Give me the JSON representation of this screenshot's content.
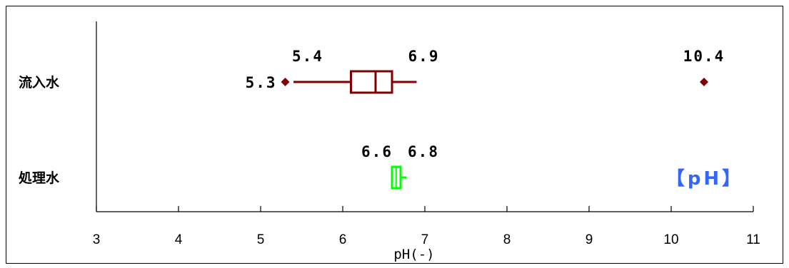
{
  "colors": {
    "inflow": "#800000",
    "treated": "#00ff00",
    "badge": "#3366ff",
    "axis": "#000000"
  },
  "chart_data": {
    "type": "boxplot",
    "xlabel": "pH(-)",
    "xlim": [
      3,
      11
    ],
    "xticks": [
      3,
      4,
      5,
      6,
      7,
      8,
      9,
      10,
      11
    ],
    "grid": false,
    "badge": "【pH】",
    "categories": [
      "流入水",
      "処理水"
    ],
    "series": [
      {
        "category": "流入水",
        "whisker_low": 5.4,
        "q1": 6.1,
        "median": 6.4,
        "q3": 6.6,
        "whisker_high": 6.9,
        "outliers": [
          5.3,
          10.4
        ],
        "labels": {
          "whisker_low": "5.4",
          "whisker_high": "6.9",
          "outlier_low": "5.3",
          "outlier_high": "10.4"
        }
      },
      {
        "category": "処理水",
        "whisker_low": 6.6,
        "q1": 6.6,
        "median": 6.65,
        "q3": 6.7,
        "whisker_high": 6.8,
        "outliers": [],
        "labels": {
          "whisker_low": "6.6",
          "whisker_high": "6.8"
        }
      }
    ]
  }
}
